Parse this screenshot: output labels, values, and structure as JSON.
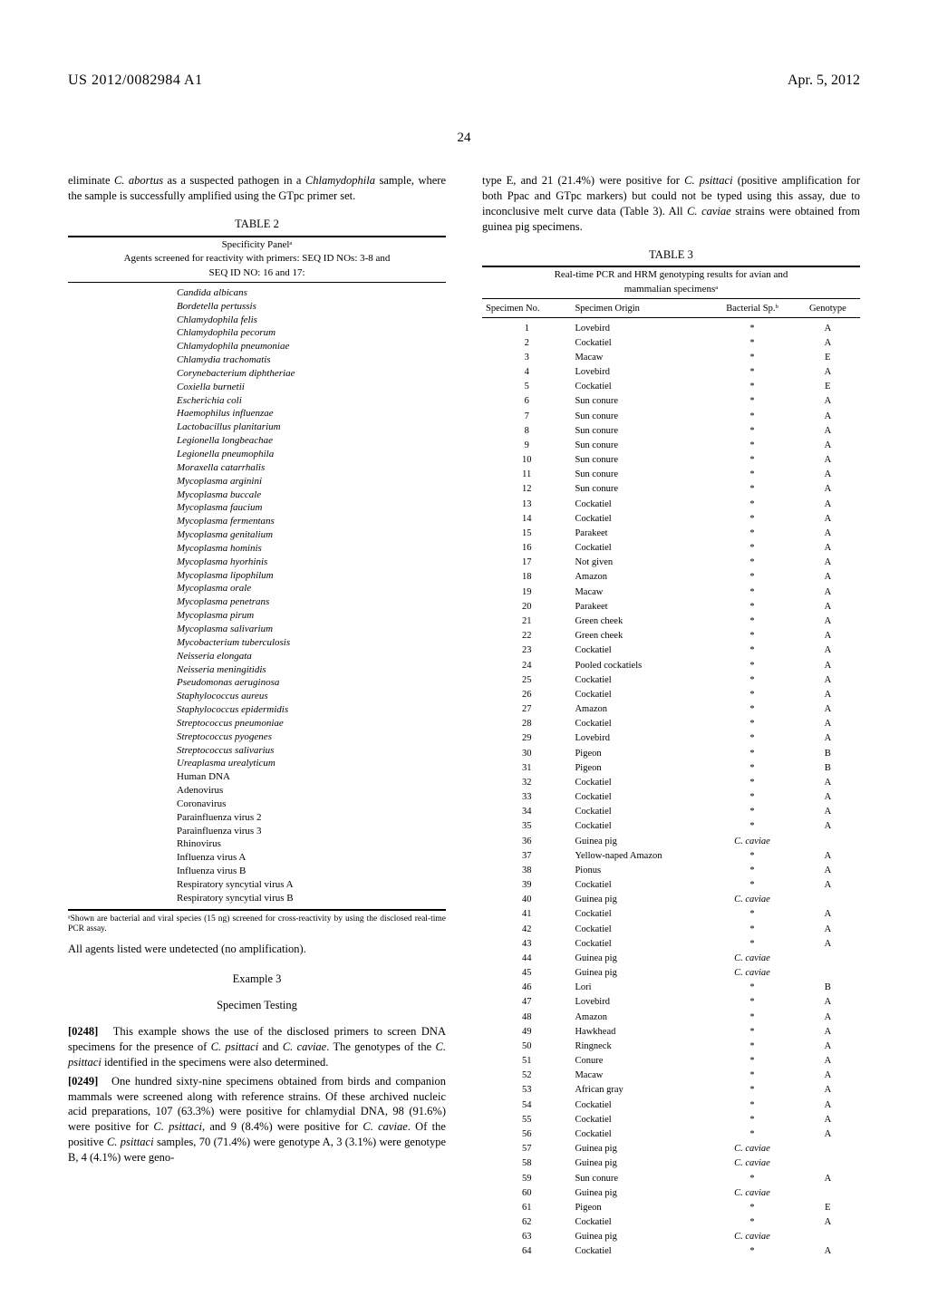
{
  "header": {
    "left": "US 2012/0082984 A1",
    "right": "Apr. 5, 2012",
    "page_number": "24"
  },
  "col1": {
    "intro": "eliminate C. abortus as a suspected pathogen in a Chlamydophila sample, where the sample is successfully amplified using the GTpc primer set.",
    "intro_italic1": "C. abortus",
    "intro_italic2": "Chlamydophila",
    "table2": {
      "label": "TABLE 2",
      "caption_line1": "Specificity Panelᵃ",
      "caption_line2": "Agents screened for reactivity with primers: SEQ ID NOs: 3-8 and",
      "caption_line3": "SEQ ID NO: 16 and 17:",
      "items_italic": [
        "Candida albicans",
        "Bordetella pertussis",
        "Chlamydophila felis",
        "Chlamydophila pecorum",
        "Chlamydophila pneumoniae",
        "Chlamydia trachomatis",
        "Corynebacterium diphtheriae",
        "Coxiella burnetii",
        "Escherichia coli",
        "Haemophilus influenzae",
        "Lactobacillus planitarium",
        "Legionella longbeachae",
        "Legionella pneumophila",
        "Moraxella catarrhalis",
        "Mycoplasma arginini",
        "Mycoplasma buccale",
        "Mycoplasma faucium",
        "Mycoplasma fermentans",
        "Mycoplasma genitalium",
        "Mycoplasma hominis",
        "Mycoplasma hyorhinis",
        "Mycoplasma lipophilum",
        "Mycoplasma orale",
        "Mycoplasma penetrans",
        "Mycoplasma pirum",
        "Mycoplasma salivarium",
        "Mycobacterium tuberculosis",
        "Neisseria elongata",
        "Neisseria meningitidis",
        "Pseudomonas aeruginosa",
        "Staphylococcus aureus",
        "Staphylococcus epidermidis",
        "Streptococcus pneumoniae",
        "Streptococcus pyogenes",
        "Streptococcus salivarius",
        "Ureaplasma urealyticum"
      ],
      "items_plain": [
        "Human DNA",
        "Adenovirus",
        "Coronavirus",
        "Parainfluenza virus 2",
        "Parainfluenza virus 3",
        "Rhinovirus",
        "Influenza virus A",
        "Influenza virus B",
        "Respiratory syncytial virus A",
        "Respiratory syncytial virus B"
      ],
      "footnote": "ᵃShown are bacterial and viral species (15 ng) screened for cross-reactivity by using the disclosed real-time PCR assay."
    },
    "after_table2": "All agents listed were undetected (no amplification).",
    "example3": {
      "heading": "Example 3",
      "subheading": "Specimen Testing",
      "p248_num": "[0248]",
      "p248": "This example shows the use of the disclosed primers to screen DNA specimens for the presence of C. psittaci and C. caviae. The genotypes of the C. psittaci identified in the specimens were also determined.",
      "p249_num": "[0249]",
      "p249": "One hundred sixty-nine specimens obtained from birds and companion mammals were screened along with reference strains. Of these archived nucleic acid preparations, 107 (63.3%) were positive for chlamydial DNA, 98 (91.6%) were positive for C. psittaci, and 9 (8.4%) were positive for C. caviae. Of the positive C. psittaci samples, 70 (71.4%) were genotype A, 3 (3.1%) were genotype B, 4 (4.1%) were geno-"
    }
  },
  "col2": {
    "intro": "type E, and 21 (21.4%) were positive for C. psittaci (positive amplification for both Ppac and GTpc markers) but could not be typed using this assay, due to inconclusive melt curve data (Table 3). All C. caviae strains were obtained from guinea pig specimens.",
    "table3": {
      "label": "TABLE 3",
      "caption_line1": "Real-time PCR and HRM genotyping results for avian and",
      "caption_line2": "mammalian specimensᵃ",
      "headers": [
        "Specimen No.",
        "Specimen Origin",
        "Bacterial Sp.ᵇ",
        "Genotype"
      ],
      "rows": [
        [
          "1",
          "Lovebird",
          "*",
          "A"
        ],
        [
          "2",
          "Cockatiel",
          "*",
          "A"
        ],
        [
          "3",
          "Macaw",
          "*",
          "E"
        ],
        [
          "4",
          "Lovebird",
          "*",
          "A"
        ],
        [
          "5",
          "Cockatiel",
          "*",
          "E"
        ],
        [
          "6",
          "Sun conure",
          "*",
          "A"
        ],
        [
          "7",
          "Sun conure",
          "*",
          "A"
        ],
        [
          "8",
          "Sun conure",
          "*",
          "A"
        ],
        [
          "9",
          "Sun conure",
          "*",
          "A"
        ],
        [
          "10",
          "Sun conure",
          "*",
          "A"
        ],
        [
          "11",
          "Sun conure",
          "*",
          "A"
        ],
        [
          "12",
          "Sun conure",
          "*",
          "A"
        ],
        [
          "13",
          "Cockatiel",
          "*",
          "A"
        ],
        [
          "14",
          "Cockatiel",
          "*",
          "A"
        ],
        [
          "15",
          "Parakeet",
          "*",
          "A"
        ],
        [
          "16",
          "Cockatiel",
          "*",
          "A"
        ],
        [
          "17",
          "Not given",
          "*",
          "A"
        ],
        [
          "18",
          "Amazon",
          "*",
          "A"
        ],
        [
          "19",
          "Macaw",
          "*",
          "A"
        ],
        [
          "20",
          "Parakeet",
          "*",
          "A"
        ],
        [
          "21",
          "Green cheek",
          "*",
          "A"
        ],
        [
          "22",
          "Green cheek",
          "*",
          "A"
        ],
        [
          "23",
          "Cockatiel",
          "*",
          "A"
        ],
        [
          "24",
          "Pooled cockatiels",
          "*",
          "A"
        ],
        [
          "25",
          "Cockatiel",
          "*",
          "A"
        ],
        [
          "26",
          "Cockatiel",
          "*",
          "A"
        ],
        [
          "27",
          "Amazon",
          "*",
          "A"
        ],
        [
          "28",
          "Cockatiel",
          "*",
          "A"
        ],
        [
          "29",
          "Lovebird",
          "*",
          "A"
        ],
        [
          "30",
          "Pigeon",
          "*",
          "B"
        ],
        [
          "31",
          "Pigeon",
          "*",
          "B"
        ],
        [
          "32",
          "Cockatiel",
          "*",
          "A"
        ],
        [
          "33",
          "Cockatiel",
          "*",
          "A"
        ],
        [
          "34",
          "Cockatiel",
          "*",
          "A"
        ],
        [
          "35",
          "Cockatiel",
          "*",
          "A"
        ],
        [
          "36",
          "Guinea pig",
          "C. caviae",
          ""
        ],
        [
          "37",
          "Yellow-naped Amazon",
          "*",
          "A"
        ],
        [
          "38",
          "Pionus",
          "*",
          "A"
        ],
        [
          "39",
          "Cockatiel",
          "*",
          "A"
        ],
        [
          "40",
          "Guinea pig",
          "C. caviae",
          ""
        ],
        [
          "41",
          "Cockatiel",
          "*",
          "A"
        ],
        [
          "42",
          "Cockatiel",
          "*",
          "A"
        ],
        [
          "43",
          "Cockatiel",
          "*",
          "A"
        ],
        [
          "44",
          "Guinea pig",
          "C. caviae",
          ""
        ],
        [
          "45",
          "Guinea pig",
          "C. caviae",
          ""
        ],
        [
          "46",
          "Lori",
          "*",
          "B"
        ],
        [
          "47",
          "Lovebird",
          "*",
          "A"
        ],
        [
          "48",
          "Amazon",
          "*",
          "A"
        ],
        [
          "49",
          "Hawkhead",
          "*",
          "A"
        ],
        [
          "50",
          "Ringneck",
          "*",
          "A"
        ],
        [
          "51",
          "Conure",
          "*",
          "A"
        ],
        [
          "52",
          "Macaw",
          "*",
          "A"
        ],
        [
          "53",
          "African gray",
          "*",
          "A"
        ],
        [
          "54",
          "Cockatiel",
          "*",
          "A"
        ],
        [
          "55",
          "Cockatiel",
          "*",
          "A"
        ],
        [
          "56",
          "Cockatiel",
          "*",
          "A"
        ],
        [
          "57",
          "Guinea pig",
          "C. caviae",
          ""
        ],
        [
          "58",
          "Guinea pig",
          "C. caviae",
          ""
        ],
        [
          "59",
          "Sun conure",
          "*",
          "A"
        ],
        [
          "60",
          "Guinea pig",
          "C. caviae",
          ""
        ],
        [
          "61",
          "Pigeon",
          "*",
          "E"
        ],
        [
          "62",
          "Cockatiel",
          "*",
          "A"
        ],
        [
          "63",
          "Guinea pig",
          "C. caviae",
          ""
        ],
        [
          "64",
          "Cockatiel",
          "*",
          "A"
        ]
      ]
    }
  }
}
